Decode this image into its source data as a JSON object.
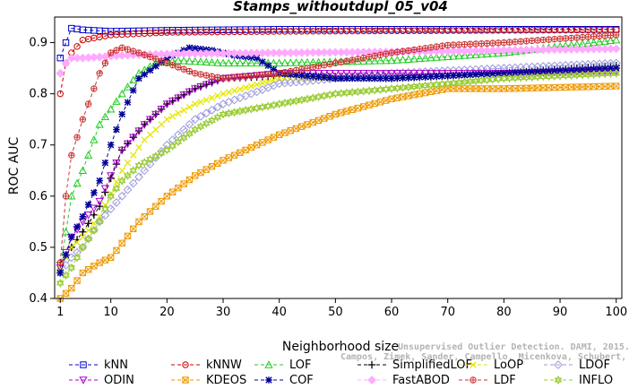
{
  "chart_data": {
    "type": "line",
    "title": "Stamps_withoutdupl_05_v04",
    "xlabel": "Neighborhood size",
    "ylabel": "ROC AUC",
    "xlim": [
      0,
      101
    ],
    "ylim": [
      0.4,
      0.95
    ],
    "xticks": [
      "1",
      "10",
      "20",
      "30",
      "40",
      "50",
      "60",
      "70",
      "80",
      "90",
      "100"
    ],
    "yticks": [
      "0.4",
      "0.5",
      "0.6",
      "0.7",
      "0.8",
      "0.9"
    ],
    "legend_position": "bottom",
    "watermark": [
      "Unsupervised Outlier Detection. DAMI, 2015.",
      "Campos, Zimek, Sander, Campello, Micenkova, Schubert, Assent, Houle"
    ],
    "series": [
      {
        "name": "kNN",
        "color": "#0000cc",
        "marker": "square",
        "x": [
          1,
          2,
          3,
          5,
          10,
          20,
          40,
          60,
          80,
          100
        ],
        "y": [
          0.87,
          0.9,
          0.928,
          0.925,
          0.922,
          0.924,
          0.926,
          0.926,
          0.926,
          0.926
        ]
      },
      {
        "name": "kNNW",
        "color": "#cc0000",
        "marker": "circle",
        "x": [
          1,
          2,
          3,
          5,
          10,
          20,
          40,
          60,
          80,
          100
        ],
        "y": [
          0.8,
          0.86,
          0.88,
          0.905,
          0.915,
          0.92,
          0.922,
          0.923,
          0.924,
          0.925
        ]
      },
      {
        "name": "LOF",
        "color": "#22cc22",
        "marker": "triangle-up",
        "x": [
          1,
          3,
          5,
          8,
          12,
          15,
          18,
          22,
          30,
          40,
          60,
          80,
          100
        ],
        "y": [
          0.46,
          0.6,
          0.65,
          0.74,
          0.8,
          0.84,
          0.86,
          0.865,
          0.86,
          0.86,
          0.865,
          0.88,
          0.905
        ]
      },
      {
        "name": "SimplifiedLOF",
        "color": "#000000",
        "marker": "plus",
        "x": [
          1,
          3,
          5,
          8,
          12,
          16,
          20,
          25,
          30,
          40,
          60,
          80,
          100
        ],
        "y": [
          0.47,
          0.5,
          0.53,
          0.58,
          0.69,
          0.74,
          0.78,
          0.81,
          0.83,
          0.835,
          0.83,
          0.84,
          0.855
        ]
      },
      {
        "name": "LoOP",
        "color": "#e6e600",
        "marker": "x",
        "x": [
          1,
          3,
          5,
          8,
          12,
          16,
          20,
          25,
          30,
          40,
          60,
          80,
          100
        ],
        "y": [
          0.46,
          0.5,
          0.52,
          0.56,
          0.65,
          0.71,
          0.75,
          0.78,
          0.8,
          0.83,
          0.83,
          0.84,
          0.85
        ]
      },
      {
        "name": "LDOF",
        "color": "#9999dd",
        "marker": "diamond",
        "x": [
          1,
          3,
          5,
          8,
          12,
          16,
          20,
          25,
          30,
          40,
          60,
          80,
          100
        ],
        "y": [
          0.45,
          0.48,
          0.5,
          0.55,
          0.6,
          0.65,
          0.7,
          0.75,
          0.78,
          0.82,
          0.84,
          0.85,
          0.86
        ]
      },
      {
        "name": "ODIN",
        "color": "#aa00cc",
        "marker": "triangle-down",
        "x": [
          1,
          3,
          5,
          8,
          12,
          16,
          20,
          25,
          30,
          40,
          60,
          80,
          100
        ],
        "y": [
          0.46,
          0.52,
          0.55,
          0.59,
          0.69,
          0.74,
          0.78,
          0.81,
          0.83,
          0.84,
          0.84,
          0.84,
          0.845
        ]
      },
      {
        "name": "KDEOS",
        "color": "#ee9900",
        "marker": "square-x",
        "x": [
          1,
          3,
          5,
          8,
          10,
          15,
          20,
          25,
          30,
          40,
          50,
          60,
          70,
          80,
          100
        ],
        "y": [
          0.4,
          0.42,
          0.45,
          0.47,
          0.48,
          0.55,
          0.6,
          0.64,
          0.67,
          0.72,
          0.76,
          0.79,
          0.81,
          0.81,
          0.815
        ]
      },
      {
        "name": "COF",
        "color": "#000099",
        "marker": "asterisk",
        "x": [
          1,
          3,
          5,
          8,
          10,
          12,
          15,
          20,
          24,
          28,
          32,
          36,
          40,
          50,
          60,
          80,
          100
        ],
        "y": [
          0.45,
          0.52,
          0.56,
          0.63,
          0.7,
          0.76,
          0.83,
          0.87,
          0.89,
          0.885,
          0.875,
          0.87,
          0.84,
          0.83,
          0.83,
          0.84,
          0.85
        ]
      },
      {
        "name": "FastABOD",
        "color": "#ffaaff",
        "marker": "diamond-filled",
        "x": [
          1,
          2,
          3,
          5,
          8,
          12,
          20,
          40,
          60,
          80,
          100
        ],
        "y": [
          0.84,
          0.86,
          0.87,
          0.87,
          0.872,
          0.875,
          0.878,
          0.88,
          0.882,
          0.885,
          0.888
        ]
      },
      {
        "name": "LDF",
        "color": "#cc3333",
        "marker": "circle-plus",
        "x": [
          1,
          2,
          3,
          5,
          8,
          10,
          12,
          15,
          20,
          25,
          30,
          40,
          50,
          60,
          70,
          80,
          100
        ],
        "y": [
          0.47,
          0.6,
          0.68,
          0.75,
          0.84,
          0.88,
          0.89,
          0.88,
          0.86,
          0.84,
          0.83,
          0.84,
          0.86,
          0.88,
          0.895,
          0.9,
          0.915
        ]
      },
      {
        "name": "INFLO",
        "color": "#99cc33",
        "marker": "star-of-david",
        "x": [
          1,
          3,
          5,
          8,
          10,
          12,
          15,
          20,
          25,
          30,
          35,
          40,
          50,
          60,
          70,
          80,
          100
        ],
        "y": [
          0.43,
          0.46,
          0.5,
          0.55,
          0.6,
          0.63,
          0.66,
          0.69,
          0.73,
          0.76,
          0.77,
          0.78,
          0.8,
          0.81,
          0.82,
          0.83,
          0.84
        ]
      }
    ]
  }
}
